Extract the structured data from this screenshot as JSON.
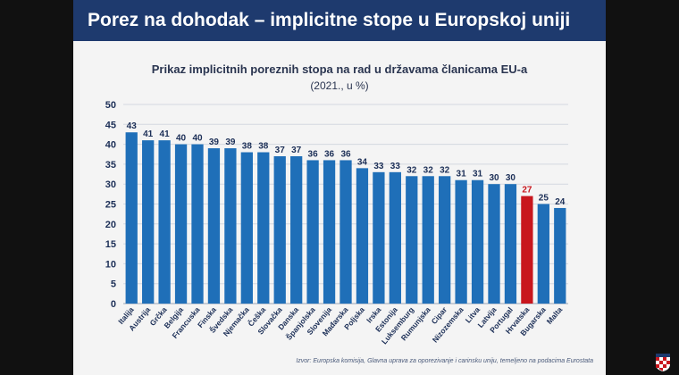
{
  "slide": {
    "title": "Porez na dohodak – implicitne stope u Europskoj uniji",
    "source": "Izvor: Europska komisija, Glavna uprava za oporezivanje i carinsku uniju, temeljeno na podacima Eurostata"
  },
  "colors": {
    "header_bg": "#1e3a6e",
    "bar": "#1f6fb8",
    "highlight_bar": "#c8161d",
    "label": "#1c2f57",
    "highlight_label": "#c8161d"
  },
  "chart_data": {
    "type": "bar",
    "title": "Prikaz implicitnih poreznih stopa na rad u državama članicama EU-a",
    "subtitle": "(2021., u %)",
    "categories": [
      "Italija",
      "Austrija",
      "Grčka",
      "Belgija",
      "Francuska",
      "Finska",
      "Švedska",
      "Njemačka",
      "Češka",
      "Slovačka",
      "Danska",
      "Španjolska",
      "Slovenija",
      "Mađarska",
      "Poljska",
      "Irska",
      "Estonija",
      "Luksemburg",
      "Rumunjska",
      "Cipar",
      "Nizozemska",
      "Litva",
      "Latvija",
      "Portugal",
      "Hrvatska",
      "Bugarska",
      "Malta"
    ],
    "values": [
      43,
      41,
      41,
      40,
      40,
      39,
      39,
      38,
      38,
      37,
      37,
      36,
      36,
      36,
      34,
      33,
      33,
      32,
      32,
      32,
      31,
      31,
      30,
      30,
      27,
      25,
      24
    ],
    "value_labels": [
      "43",
      "41",
      "41",
      "40",
      "40",
      "39",
      "39",
      "38",
      "38",
      "37",
      "37",
      "36",
      "36",
      "36",
      "34",
      "33",
      "33",
      "32",
      "32",
      "32",
      "31",
      "31",
      "30",
      "30",
      "27",
      "25",
      "24"
    ],
    "highlight": "Hrvatska",
    "ylim": [
      0,
      50
    ],
    "yticks": [
      "0",
      "5",
      "10",
      "15",
      "20",
      "25",
      "30",
      "35",
      "40",
      "45",
      "50"
    ],
    "ytick_values": [
      0,
      5,
      10,
      15,
      20,
      25,
      30,
      35,
      40,
      45,
      50
    ],
    "grid": true,
    "xlabel": "",
    "ylabel": ""
  }
}
